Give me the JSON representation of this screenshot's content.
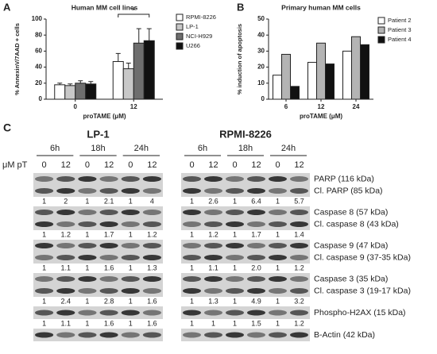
{
  "chart_data": [
    {
      "type": "bar",
      "panel": "A",
      "title": "Human MM cell lines",
      "ylabel": "% AnnexinV/7AAD + cells",
      "xlabel": "proTAME (μM)",
      "categories": [
        "0",
        "12"
      ],
      "ylim": [
        0,
        100
      ],
      "yticks": [
        0,
        20,
        40,
        60,
        80,
        100
      ],
      "annotation": "*",
      "series": [
        {
          "name": "RPMI-8226",
          "color": "#ffffff",
          "values": [
            18,
            47
          ],
          "errors": [
            2,
            10
          ]
        },
        {
          "name": "LP-1",
          "color": "#c8c8c8",
          "values": [
            17,
            38
          ],
          "errors": [
            2,
            7
          ]
        },
        {
          "name": "NCI-H929",
          "color": "#6e6e6e",
          "values": [
            20,
            70
          ],
          "errors": [
            3,
            18
          ]
        },
        {
          "name": "U266",
          "color": "#111111",
          "values": [
            19,
            73
          ],
          "errors": [
            3,
            15
          ]
        }
      ]
    },
    {
      "type": "bar",
      "panel": "B",
      "title": "Primary human MM cells",
      "ylabel": "% induction of apoptosis",
      "xlabel": "proTAME (μM)",
      "categories": [
        "6",
        "12",
        "24"
      ],
      "ylim": [
        0,
        50
      ],
      "yticks": [
        0,
        10,
        20,
        30,
        40,
        50
      ],
      "series": [
        {
          "name": "Patient 2",
          "color": "#ffffff",
          "values": [
            15,
            23,
            30
          ]
        },
        {
          "name": "Patient 3",
          "color": "#b4b4b4",
          "values": [
            28,
            35,
            39
          ]
        },
        {
          "name": "Patient 4",
          "color": "#111111",
          "values": [
            8,
            22,
            34
          ]
        }
      ]
    }
  ],
  "blot": {
    "panel": "C",
    "dose_label": "μM pT",
    "lines": [
      {
        "name": "LP-1",
        "times": [
          "6h",
          "18h",
          "24h"
        ],
        "doses": [
          "0",
          "12",
          "0",
          "12",
          "0",
          "12"
        ]
      },
      {
        "name": "RPMI-8226",
        "times": [
          "6h",
          "18h",
          "24h"
        ],
        "doses": [
          "0",
          "12",
          "0",
          "12",
          "0",
          "12"
        ]
      }
    ],
    "rows": [
      {
        "labels": [
          "PARP (116 kDa)",
          "Cl. PARP (85 kDa)"
        ],
        "values": [
          [
            "1",
            "2",
            "1",
            "2.1",
            "1",
            "4"
          ],
          [
            "1",
            "2.6",
            "1",
            "6.4",
            "1",
            "5.7"
          ]
        ]
      },
      {
        "labels": [
          "Caspase 8 (57 kDa)",
          "Cl. caspase 8 (43 kDa)"
        ],
        "values": [
          [
            "1",
            "1.2",
            "1",
            "1.7",
            "1",
            "1.2"
          ],
          [
            "1",
            "1.2",
            "1",
            "1.7",
            "1",
            "1.4"
          ]
        ]
      },
      {
        "labels": [
          "Caspase 9 (47 kDa)",
          "Cl. caspase 9 (37-35 kDa)"
        ],
        "values": [
          [
            "1",
            "1.1",
            "1",
            "1.6",
            "1",
            "1.3"
          ],
          [
            "1",
            "1.1",
            "1",
            "2.0",
            "1",
            "1.2"
          ]
        ]
      },
      {
        "labels": [
          "Caspase 3 (35 kDa)",
          "Cl. caspase 3 (19-17 kDa)"
        ],
        "values": [
          [
            "1",
            "2.4",
            "1",
            "2.8",
            "1",
            "1.6"
          ],
          [
            "1",
            "1.3",
            "1",
            "4.9",
            "1",
            "3.2"
          ]
        ]
      },
      {
        "labels": [
          "Phospho-H2AX (15 kDa)"
        ],
        "values": [
          [
            "1",
            "1.1",
            "1",
            "1.6",
            "1",
            "1.6"
          ],
          [
            "1",
            "1",
            "1",
            "1.5",
            "1",
            "1.2"
          ]
        ]
      },
      {
        "labels": [
          "B-Actin (42 kDa)"
        ]
      }
    ]
  }
}
